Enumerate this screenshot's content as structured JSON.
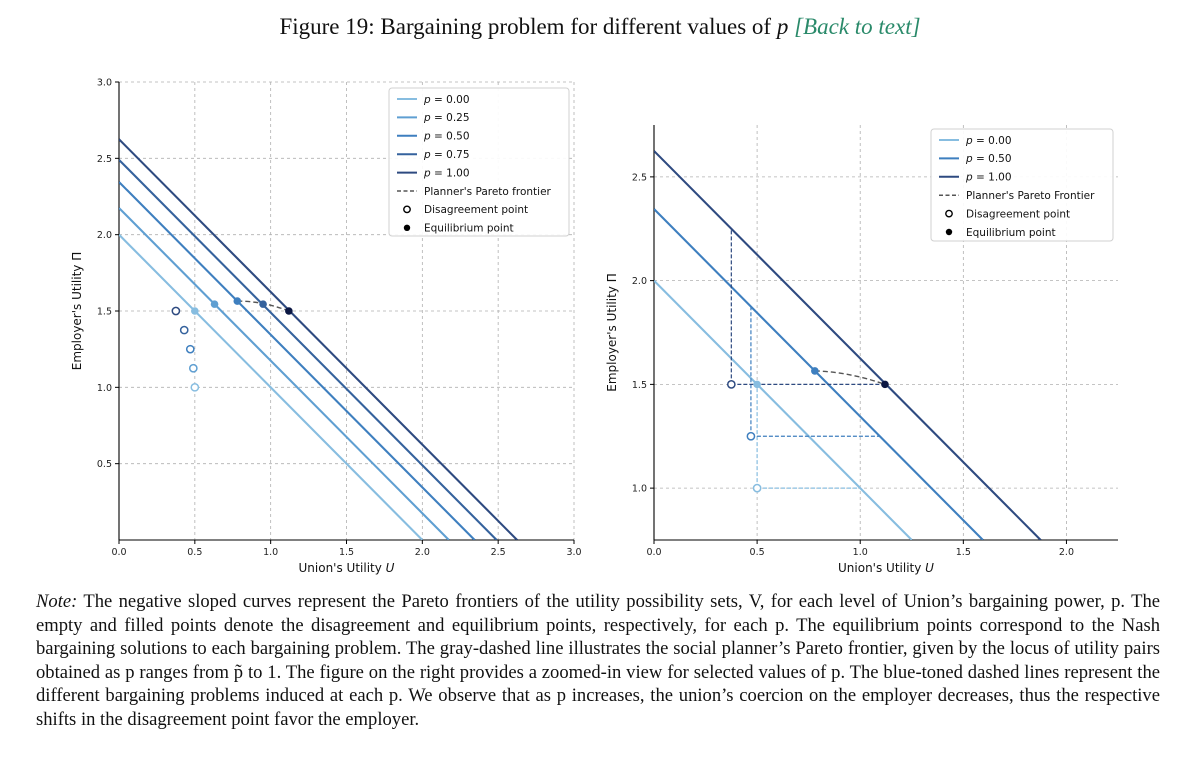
{
  "figure": {
    "title_prefix": "Figure 19: Bargaining problem for different values of",
    "title_var": "p",
    "title_link": "[Back to text]"
  },
  "colors": {
    "p000": "#87bde0",
    "p025": "#5f9fd2",
    "p050": "#3e7fbf",
    "p075": "#35629d",
    "p100": "#2e4a80",
    "planner": "#555555",
    "equilibrium_dark": "#0b1743",
    "grid": "#b0b0b0"
  },
  "chart_data": [
    {
      "type": "line",
      "panel": "left",
      "xlabel": "Union's Utility U",
      "ylabel": "Employer's Utility Π",
      "xlim": [
        0.0,
        3.0
      ],
      "ylim": [
        0.0,
        3.0
      ],
      "xticks": [
        "0.0",
        "0.5",
        "1.0",
        "1.5",
        "2.0",
        "2.5",
        "3.0"
      ],
      "yticks": [
        "0.5",
        "1.0",
        "1.5",
        "2.0",
        "2.5",
        "3.0"
      ],
      "grid": true,
      "legend_position": "top-right",
      "series": [
        {
          "name": "p=0.00",
          "color_key": "p000",
          "intercept": 2.0,
          "slope": -1.0
        },
        {
          "name": "p=0.25",
          "color_key": "p025",
          "intercept": 2.175,
          "slope": -1.0
        },
        {
          "name": "p=0.50",
          "color_key": "p050",
          "intercept": 2.345,
          "slope": -1.0
        },
        {
          "name": "p=0.75",
          "color_key": "p075",
          "intercept": 2.49,
          "slope": -1.0
        },
        {
          "name": "p=1.00",
          "color_key": "p100",
          "intercept": 2.625,
          "slope": -1.0
        }
      ],
      "planner_frontier": {
        "name": "Planner's Pareto frontier",
        "points": [
          [
            0.78,
            1.565
          ],
          [
            0.95,
            1.545
          ],
          [
            1.12,
            1.5
          ]
        ]
      },
      "disagreement_points": {
        "name": "Disagreement point",
        "points": [
          [
            0.5,
            1.0
          ],
          [
            0.49,
            1.125
          ],
          [
            0.47,
            1.25
          ],
          [
            0.43,
            1.375
          ],
          [
            0.375,
            1.5
          ]
        ]
      },
      "equilibrium_points": {
        "name": "Equilibrium point",
        "points": [
          [
            0.5,
            1.5
          ],
          [
            0.63,
            1.545
          ],
          [
            0.78,
            1.565
          ],
          [
            0.95,
            1.545
          ],
          [
            1.12,
            1.5
          ]
        ]
      },
      "legend": [
        "p=0.00",
        "p=0.25",
        "p=0.50",
        "p=0.75",
        "p=1.00",
        "Planner's Pareto frontier",
        "Disagreement point",
        "Equilibrium point"
      ]
    },
    {
      "type": "line",
      "panel": "right",
      "xlabel": "Union's Utility U",
      "ylabel": "Employer's Utility Π",
      "xlim": [
        0.0,
        2.25
      ],
      "ylim": [
        0.75,
        2.75
      ],
      "xticks": [
        "0.0",
        "0.5",
        "1.0",
        "1.5",
        "2.0"
      ],
      "yticks": [
        "1.0",
        "1.5",
        "2.0",
        "2.5"
      ],
      "grid": true,
      "legend_position": "top-right",
      "series": [
        {
          "name": "p=0.00",
          "color_key": "p000",
          "intercept": 2.0,
          "slope": -1.0
        },
        {
          "name": "p=0.50",
          "color_key": "p050",
          "intercept": 2.345,
          "slope": -1.0
        },
        {
          "name": "p=1.00",
          "color_key": "p100",
          "intercept": 2.625,
          "slope": -1.0
        }
      ],
      "planner_frontier": {
        "name": "Planner's Pareto Frontier",
        "points": [
          [
            0.78,
            1.565
          ],
          [
            0.95,
            1.545
          ],
          [
            1.12,
            1.5
          ]
        ]
      },
      "disagreement_points": {
        "name": "Disagreement point",
        "points": [
          [
            0.5,
            1.0
          ],
          [
            0.47,
            1.25
          ],
          [
            0.375,
            1.5
          ]
        ]
      },
      "equilibrium_points": {
        "name": "Equilibrium point",
        "points": [
          [
            0.5,
            1.5
          ],
          [
            0.78,
            1.565
          ],
          [
            1.12,
            1.5
          ]
        ]
      },
      "bargaining_boxes": [
        {
          "color_key": "p000",
          "d": [
            0.5,
            1.0
          ],
          "xmax": 1.0,
          "ymax": 1.5
        },
        {
          "color_key": "p050",
          "d": [
            0.47,
            1.25
          ],
          "xmax": 1.095,
          "ymax": 1.875
        },
        {
          "color_key": "p100",
          "d": [
            0.375,
            1.5
          ],
          "xmax": 1.125,
          "ymax": 2.25
        }
      ],
      "legend": [
        "p=0.00",
        "p=0.50",
        "p=1.00",
        "Planner's Pareto Frontier",
        "Disagreement point",
        "Equilibrium point"
      ]
    }
  ],
  "note": {
    "label": "Note:",
    "text": "The negative sloped curves represent the Pareto frontiers of the utility possibility sets, V, for each level of Union’s bargaining power, p. The empty and filled points denote the disagreement and equilibrium points, respectively, for each p. The equilibrium points correspond to the Nash bargaining solutions to each bargaining problem. The gray-dashed line illustrates the social planner’s Pareto frontier, given by the locus of utility pairs obtained as p ranges from p̃ to 1. The figure on the right provides a zoomed-in view for selected values of p. The blue-toned dashed lines represent the different bargaining problems induced at each p. We observe that as p increases, the union’s coercion on the employer decreases, thus the respective shifts in the disagreement point favor the employer."
  }
}
